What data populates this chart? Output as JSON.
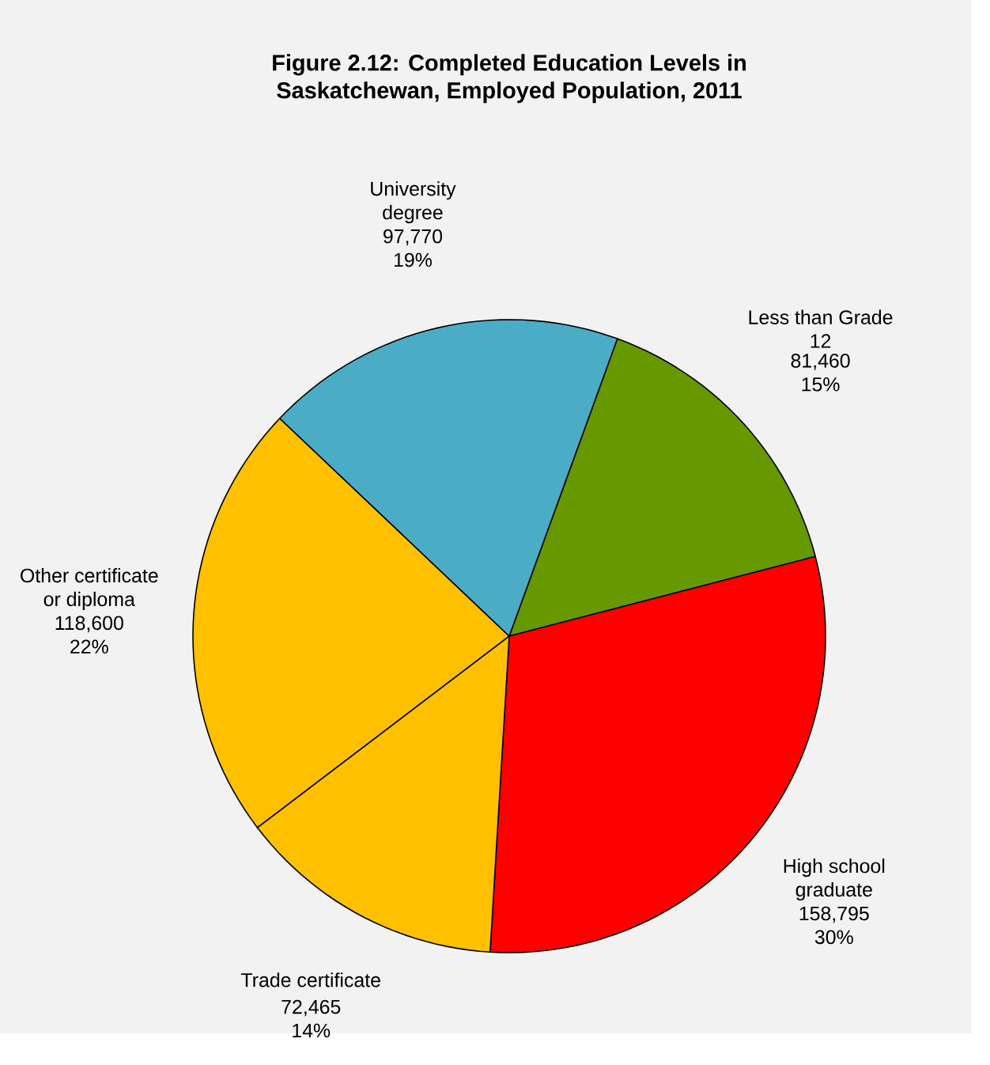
{
  "chart_data": {
    "type": "pie",
    "title": "Figure 2.12: Completed Education Levels in Saskatchewan, Employed Population, 2011",
    "categories": [
      "Less than Grade 12",
      "High school graduate",
      "Trade certificate",
      "Other certificate or diploma",
      "University degree"
    ],
    "values": [
      81460,
      158795,
      72465,
      118600,
      97770
    ],
    "value_labels": [
      "81,460 15%",
      "158,795 30%",
      "72,465 14%",
      "118,600 22%",
      "97,770 19%"
    ],
    "colors": [
      "#669900",
      "#ff0000",
      "#ffc000",
      "#ffc000",
      "#4bacc6"
    ]
  }
}
